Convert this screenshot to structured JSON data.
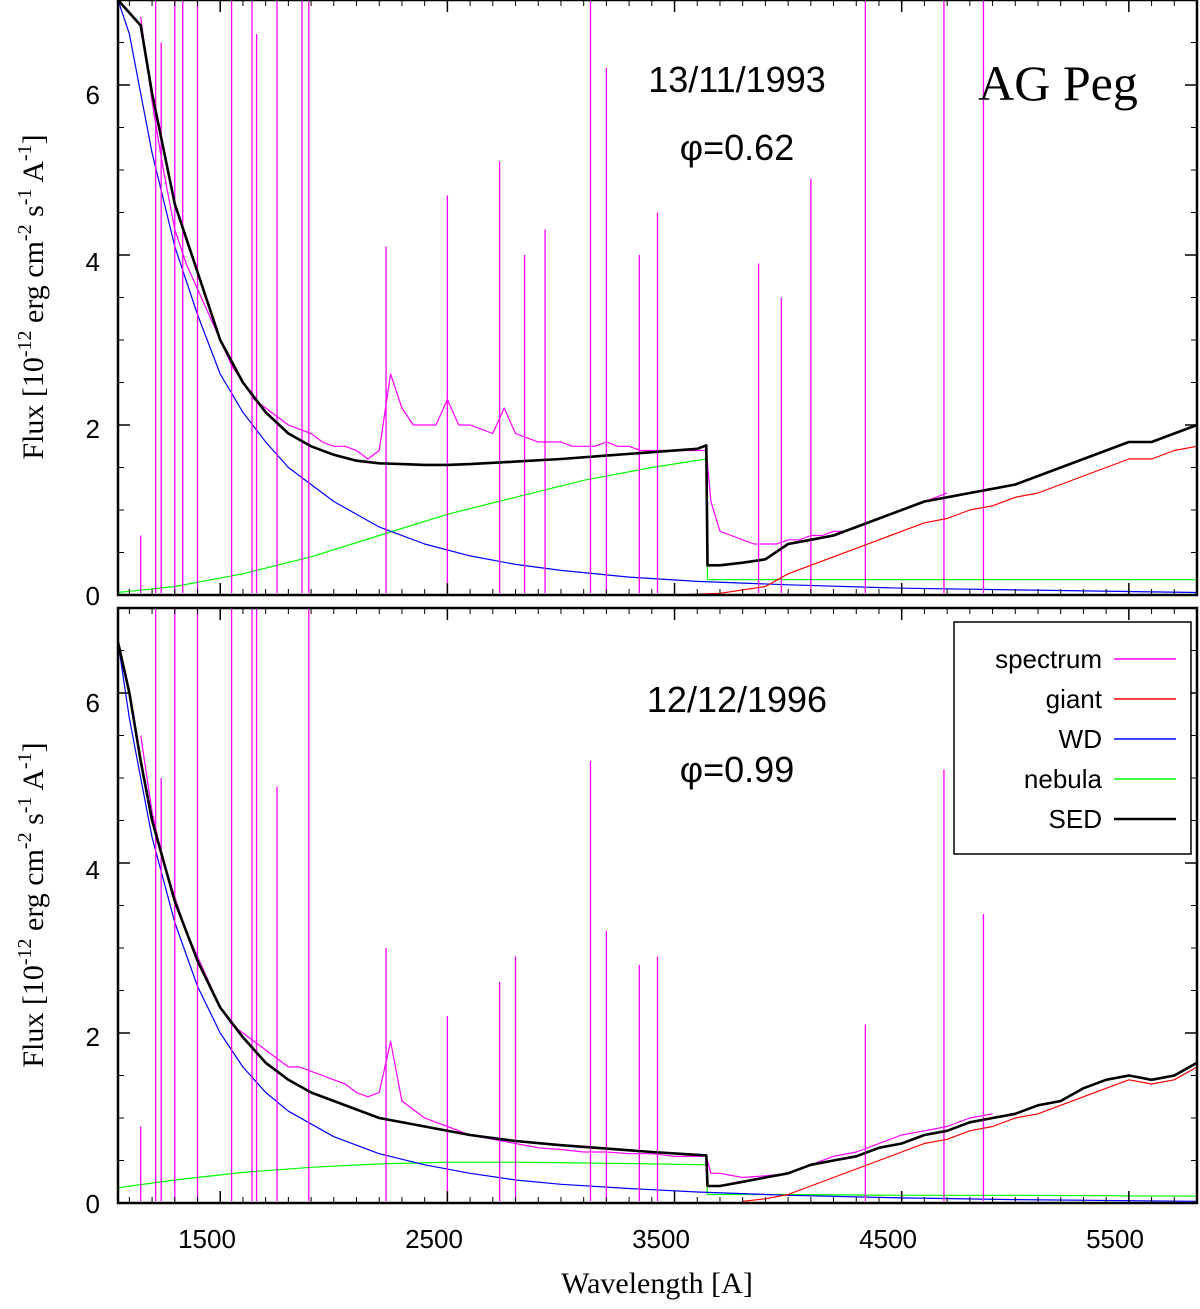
{
  "chart_data": [
    {
      "type": "line",
      "panel": "top",
      "title": "",
      "star_name": "AG Peg",
      "date": "13/11/1993",
      "phase": "φ=0.62",
      "ylabel": "Flux [10-12 erg cm-2 s-1 A-1]",
      "ylabel_parts": {
        "a": "Flux [10",
        "e1": "-12",
        "b": " erg cm",
        "e2": "-2",
        "c": " s",
        "e3": "-1",
        "d": " A",
        "e4": "-1",
        "f": "]"
      },
      "xlim": [
        1050,
        5800
      ],
      "ylim": [
        0,
        7.0
      ],
      "yticks": [
        0,
        2,
        4,
        6
      ],
      "ytick_labels": [
        "0",
        "2",
        "4",
        "6"
      ],
      "series": [
        {
          "name": "spectrum",
          "color": "#ff00ff",
          "x": [
            1150,
            1200,
            1250,
            1300,
            1350,
            1400,
            1450,
            1500,
            1550,
            1600,
            1650,
            1700,
            1750,
            1800,
            1850,
            1900,
            1950,
            2000,
            2050,
            2100,
            2150,
            2200,
            2250,
            2300,
            2350,
            2400,
            2450,
            2500,
            2550,
            2600,
            2650,
            2700,
            2750,
            2800,
            2850,
            2900,
            2950,
            3000,
            3050,
            3100,
            3150,
            3200,
            3250,
            3300,
            3350,
            3400,
            3450,
            3500,
            3550,
            3600,
            3640,
            3660,
            3700,
            3750,
            3800,
            3850,
            3900,
            3950,
            4000,
            4050,
            4100,
            4150,
            4200,
            4250,
            4300,
            4350,
            4400,
            4450,
            4500,
            4550,
            4600,
            4650,
            4700
          ],
          "y": [
            6.8,
            5.8,
            5.0,
            4.3,
            3.9,
            3.6,
            3.3,
            3.0,
            2.7,
            2.5,
            2.3,
            2.2,
            2.1,
            2.0,
            1.95,
            1.9,
            1.8,
            1.75,
            1.75,
            1.7,
            1.6,
            1.7,
            2.6,
            2.2,
            2.0,
            2.0,
            2.0,
            2.3,
            2.0,
            2.0,
            1.95,
            1.9,
            2.2,
            1.9,
            1.85,
            1.8,
            1.8,
            1.8,
            1.75,
            1.75,
            1.75,
            1.8,
            1.75,
            1.75,
            1.7,
            1.7,
            1.7,
            1.7,
            1.7,
            1.7,
            1.7,
            1.1,
            0.75,
            0.7,
            0.65,
            0.6,
            0.6,
            0.6,
            0.65,
            0.65,
            0.7,
            0.7,
            0.75,
            0.75,
            0.8,
            0.85,
            0.9,
            0.95,
            1.0,
            1.05,
            1.1,
            1.15,
            1.2
          ],
          "lines": [
            {
              "x": 1150,
              "y": 0.7
            },
            {
              "x": 1216,
              "y": 7.0
            },
            {
              "x": 1240,
              "y": 6.5
            },
            {
              "x": 1300,
              "y": 7.0
            },
            {
              "x": 1335,
              "y": 7.0
            },
            {
              "x": 1400,
              "y": 7.0
            },
            {
              "x": 1550,
              "y": 7.0
            },
            {
              "x": 1640,
              "y": 7.0
            },
            {
              "x": 1660,
              "y": 6.6
            },
            {
              "x": 1750,
              "y": 7.0
            },
            {
              "x": 1860,
              "y": 7.0
            },
            {
              "x": 1890,
              "y": 7.0
            },
            {
              "x": 2230,
              "y": 4.1
            },
            {
              "x": 2500,
              "y": 4.7
            },
            {
              "x": 2730,
              "y": 5.1
            },
            {
              "x": 2840,
              "y": 4.0
            },
            {
              "x": 2930,
              "y": 4.3
            },
            {
              "x": 3130,
              "y": 7.0
            },
            {
              "x": 3200,
              "y": 6.2
            },
            {
              "x": 3345,
              "y": 4.0
            },
            {
              "x": 3425,
              "y": 4.5
            },
            {
              "x": 3870,
              "y": 3.9
            },
            {
              "x": 3970,
              "y": 3.5
            },
            {
              "x": 4100,
              "y": 4.9
            },
            {
              "x": 4340,
              "y": 7.0
            },
            {
              "x": 4686,
              "y": 7.0
            },
            {
              "x": 4860,
              "y": 7.0
            }
          ]
        },
        {
          "name": "giant",
          "color": "#ff0000",
          "x": [
            3500,
            3700,
            3900,
            4000,
            4100,
            4200,
            4300,
            4400,
            4500,
            4600,
            4700,
            4800,
            4900,
            5000,
            5100,
            5200,
            5300,
            5400,
            5500,
            5600,
            5700,
            5800
          ],
          "y": [
            0.0,
            0.02,
            0.1,
            0.25,
            0.35,
            0.45,
            0.55,
            0.65,
            0.75,
            0.85,
            0.9,
            1.0,
            1.05,
            1.15,
            1.2,
            1.3,
            1.4,
            1.5,
            1.6,
            1.6,
            1.7,
            1.75
          ]
        },
        {
          "name": "WD",
          "color": "#0000ff",
          "x": [
            1050,
            1100,
            1150,
            1200,
            1300,
            1400,
            1500,
            1600,
            1700,
            1800,
            2000,
            2200,
            2400,
            2600,
            2800,
            3000,
            3300,
            3600,
            4000,
            4500,
            5000,
            5800
          ],
          "y": [
            7.5,
            6.6,
            5.9,
            5.2,
            4.1,
            3.3,
            2.6,
            2.15,
            1.8,
            1.5,
            1.1,
            0.8,
            0.6,
            0.46,
            0.36,
            0.29,
            0.21,
            0.16,
            0.12,
            0.08,
            0.06,
            0.03
          ]
        },
        {
          "name": "nebula",
          "color": "#00ff00",
          "x": [
            1050,
            1300,
            1600,
            1900,
            2200,
            2500,
            2800,
            3100,
            3400,
            3640,
            3645,
            4000,
            4500,
            5000,
            5800
          ],
          "y": [
            0.03,
            0.1,
            0.25,
            0.45,
            0.7,
            0.95,
            1.15,
            1.35,
            1.5,
            1.6,
            0.18,
            0.18,
            0.18,
            0.18,
            0.18
          ]
        },
        {
          "name": "SED",
          "color": "#000000",
          "x": [
            1050,
            1150,
            1200,
            1300,
            1400,
            1500,
            1600,
            1700,
            1800,
            1900,
            2000,
            2100,
            2200,
            2300,
            2400,
            2500,
            2600,
            2800,
            3000,
            3200,
            3400,
            3600,
            3640,
            3645,
            3700,
            3800,
            3900,
            4000,
            4100,
            4200,
            4300,
            4400,
            4500,
            4600,
            4700,
            4800,
            4900,
            5000,
            5100,
            5200,
            5300,
            5400,
            5500,
            5600,
            5700,
            5800
          ],
          "y": [
            7.5,
            6.7,
            5.9,
            4.6,
            3.8,
            3.0,
            2.5,
            2.15,
            1.9,
            1.75,
            1.65,
            1.58,
            1.55,
            1.54,
            1.53,
            1.53,
            1.54,
            1.57,
            1.6,
            1.64,
            1.68,
            1.72,
            1.76,
            0.35,
            0.35,
            0.38,
            0.42,
            0.6,
            0.65,
            0.7,
            0.8,
            0.9,
            1.0,
            1.1,
            1.15,
            1.2,
            1.25,
            1.3,
            1.4,
            1.5,
            1.6,
            1.7,
            1.8,
            1.8,
            1.9,
            2.0
          ]
        }
      ]
    },
    {
      "type": "line",
      "panel": "bottom",
      "title": "",
      "date": "12/12/1996",
      "phase": "φ=0.99",
      "xlabel": "Wavelength [A]",
      "ylabel": "Flux [10-12 erg cm-2 s-1 A-1]",
      "ylabel_parts": {
        "a": "Flux [10",
        "e1": "-12",
        "b": " erg cm",
        "e2": "-2",
        "c": " s",
        "e3": "-1",
        "d": " A",
        "e4": "-1",
        "f": "]"
      },
      "xlim": [
        1050,
        5800
      ],
      "ylim": [
        0,
        7.0
      ],
      "xticks": [
        1500,
        2500,
        3500,
        4500,
        5500
      ],
      "xtick_labels": [
        "1500",
        "2500",
        "3500",
        "4500",
        "5500"
      ],
      "yticks": [
        0,
        2,
        4,
        6
      ],
      "ytick_labels": [
        "0",
        "2",
        "4",
        "6"
      ],
      "legend": {
        "position": "top-right",
        "entries": [
          "spectrum",
          "giant",
          "WD",
          "nebula",
          "SED"
        ]
      },
      "series": [
        {
          "name": "spectrum",
          "color": "#ff00ff",
          "x": [
            1150,
            1200,
            1250,
            1300,
            1350,
            1400,
            1450,
            1500,
            1550,
            1600,
            1650,
            1700,
            1750,
            1800,
            1850,
            1900,
            1950,
            2000,
            2050,
            2100,
            2150,
            2200,
            2250,
            2300,
            2350,
            2400,
            2450,
            2500,
            2600,
            2700,
            2800,
            2900,
            3000,
            3100,
            3200,
            3300,
            3400,
            3500,
            3600,
            3640,
            3660,
            3700,
            3800,
            3900,
            4000,
            4100,
            4200,
            4300,
            4400,
            4500,
            4600,
            4700,
            4800,
            4900
          ],
          "y": [
            5.5,
            4.6,
            4.0,
            3.6,
            3.2,
            2.9,
            2.6,
            2.3,
            2.1,
            2.0,
            1.9,
            1.8,
            1.7,
            1.6,
            1.6,
            1.55,
            1.5,
            1.45,
            1.4,
            1.3,
            1.25,
            1.3,
            1.9,
            1.2,
            1.1,
            1.0,
            0.95,
            0.9,
            0.8,
            0.75,
            0.7,
            0.65,
            0.63,
            0.6,
            0.6,
            0.58,
            0.58,
            0.55,
            0.55,
            0.55,
            0.35,
            0.35,
            0.3,
            0.32,
            0.35,
            0.45,
            0.55,
            0.6,
            0.7,
            0.8,
            0.85,
            0.9,
            1.0,
            1.05
          ],
          "lines": [
            {
              "x": 1150,
              "y": 0.9
            },
            {
              "x": 1216,
              "y": 7.0
            },
            {
              "x": 1240,
              "y": 5.0
            },
            {
              "x": 1300,
              "y": 7.0
            },
            {
              "x": 1400,
              "y": 7.0
            },
            {
              "x": 1550,
              "y": 7.0
            },
            {
              "x": 1640,
              "y": 7.0
            },
            {
              "x": 1660,
              "y": 7.0
            },
            {
              "x": 1750,
              "y": 4.9
            },
            {
              "x": 1890,
              "y": 7.0
            },
            {
              "x": 2230,
              "y": 3.0
            },
            {
              "x": 2500,
              "y": 2.2
            },
            {
              "x": 2730,
              "y": 2.6
            },
            {
              "x": 2800,
              "y": 2.9
            },
            {
              "x": 3130,
              "y": 5.2
            },
            {
              "x": 3200,
              "y": 3.2
            },
            {
              "x": 3345,
              "y": 2.8
            },
            {
              "x": 3425,
              "y": 2.9
            },
            {
              "x": 4340,
              "y": 2.1
            },
            {
              "x": 4686,
              "y": 5.1
            },
            {
              "x": 4860,
              "y": 3.4
            }
          ]
        },
        {
          "name": "giant",
          "color": "#ff0000",
          "x": [
            3800,
            3900,
            4000,
            4100,
            4200,
            4300,
            4400,
            4500,
            4600,
            4700,
            4800,
            4900,
            5000,
            5100,
            5200,
            5300,
            5400,
            5500,
            5600,
            5700,
            5800
          ],
          "y": [
            0.02,
            0.05,
            0.1,
            0.2,
            0.3,
            0.4,
            0.5,
            0.6,
            0.7,
            0.75,
            0.85,
            0.9,
            1.0,
            1.05,
            1.15,
            1.25,
            1.35,
            1.45,
            1.4,
            1.45,
            1.6
          ]
        },
        {
          "name": "WD",
          "color": "#0000ff",
          "x": [
            1050,
            1100,
            1150,
            1200,
            1300,
            1400,
            1500,
            1600,
            1700,
            1800,
            2000,
            2200,
            2400,
            2600,
            2800,
            3000,
            3300,
            3600,
            4000,
            4500,
            5000,
            5800
          ],
          "y": [
            6.6,
            5.7,
            5.0,
            4.3,
            3.3,
            2.55,
            2.0,
            1.6,
            1.3,
            1.08,
            0.78,
            0.58,
            0.45,
            0.35,
            0.27,
            0.22,
            0.17,
            0.13,
            0.09,
            0.06,
            0.04,
            0.02
          ]
        },
        {
          "name": "nebula",
          "color": "#00ff00",
          "x": [
            1050,
            1300,
            1600,
            1900,
            2200,
            2500,
            2800,
            3100,
            3400,
            3640,
            3645,
            4000,
            4500,
            5000,
            5800
          ],
          "y": [
            0.18,
            0.27,
            0.36,
            0.42,
            0.46,
            0.48,
            0.48,
            0.47,
            0.46,
            0.45,
            0.1,
            0.1,
            0.09,
            0.09,
            0.08
          ]
        },
        {
          "name": "SED",
          "color": "#000000",
          "x": [
            1050,
            1100,
            1150,
            1200,
            1300,
            1400,
            1500,
            1600,
            1700,
            1800,
            1900,
            2000,
            2200,
            2400,
            2600,
            2800,
            3000,
            3200,
            3400,
            3640,
            3645,
            3700,
            3800,
            3900,
            4000,
            4100,
            4200,
            4300,
            4400,
            4500,
            4600,
            4700,
            4800,
            4900,
            5000,
            5100,
            5200,
            5300,
            5400,
            5500,
            5600,
            5700,
            5800
          ],
          "y": [
            6.6,
            6.0,
            5.2,
            4.5,
            3.55,
            2.85,
            2.3,
            1.95,
            1.65,
            1.45,
            1.3,
            1.2,
            1.0,
            0.9,
            0.8,
            0.73,
            0.68,
            0.64,
            0.6,
            0.56,
            0.2,
            0.2,
            0.25,
            0.3,
            0.35,
            0.45,
            0.5,
            0.55,
            0.65,
            0.7,
            0.8,
            0.85,
            0.95,
            1.0,
            1.05,
            1.15,
            1.2,
            1.35,
            1.45,
            1.5,
            1.45,
            1.5,
            1.65
          ]
        }
      ]
    }
  ]
}
